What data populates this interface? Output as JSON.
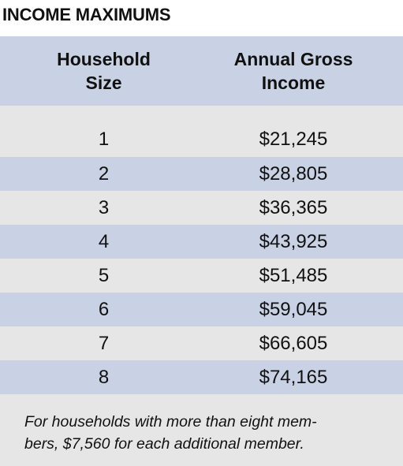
{
  "title": "INCOME MAXIMUMS",
  "table": {
    "headers": {
      "household_size": "Household Size",
      "annual_income": "Annual Gross Income"
    },
    "rows": [
      {
        "size": "1",
        "income": "$21,245"
      },
      {
        "size": "2",
        "income": "$28,805"
      },
      {
        "size": "3",
        "income": "$36,365"
      },
      {
        "size": "4",
        "income": "$43,925"
      },
      {
        "size": "5",
        "income": "$51,485"
      },
      {
        "size": "6",
        "income": "$59,045"
      },
      {
        "size": "7",
        "income": "$66,605"
      },
      {
        "size": "8",
        "income": "$74,165"
      }
    ]
  },
  "footnote": {
    "line1": "For households with more than eight mem-",
    "line2": "bers, $7,560 for each additional member."
  },
  "colors": {
    "header_bg": "#c9d2e5",
    "band_gray": "#e6e6e6",
    "band_blue": "#c9d2e5"
  }
}
